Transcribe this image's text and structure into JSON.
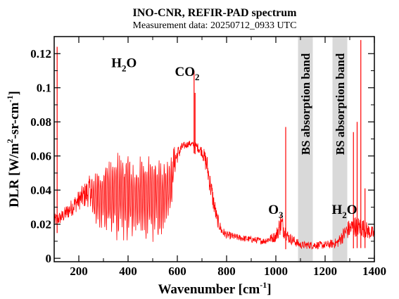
{
  "chart_data": {
    "type": "line",
    "title": "INO-CNR, REFIR-PAD spectrum",
    "subtitle": "Measurement data: 20250712_0933 UTC",
    "xlabel": {
      "base": "Wavenumber [cm",
      "sup": "-1",
      "tail": "]"
    },
    "ylabel": {
      "p1": "DLR [W/m",
      "sup1": "2",
      "p2": "-sr-cm",
      "sup2": "-1",
      "p3": "]"
    },
    "xlim": [
      100,
      1400
    ],
    "ylim": [
      -0.002,
      0.13
    ],
    "x_ticks": [
      200,
      400,
      600,
      800,
      1000,
      1200,
      1400
    ],
    "x_tick_labels": [
      "200",
      "400",
      "600",
      "800",
      "1000",
      "1200",
      "1400"
    ],
    "y_ticks": [
      0,
      0.02,
      0.04,
      0.06,
      0.08,
      0.1,
      0.12
    ],
    "y_tick_labels": [
      "0",
      "0.02",
      "0.04",
      "0.06",
      "0.08",
      "0.1",
      "0.12"
    ],
    "grid": false,
    "series_color": "#ff0000",
    "band_color": "#d9d9d9",
    "bands": [
      {
        "x0": 1090,
        "x1": 1150,
        "label": "BS absorption band"
      },
      {
        "x0": 1230,
        "x1": 1290,
        "label": "BS absorption band"
      }
    ],
    "annotations": [
      {
        "id": "h2o-left",
        "base": "H",
        "sub": "2",
        "tail": "O",
        "x": 435,
        "y": 0.112
      },
      {
        "id": "co2",
        "base": "CO",
        "sub": "2",
        "tail": "",
        "x": 690,
        "y": 0.107
      },
      {
        "id": "o3",
        "base": "O",
        "sub": "3",
        "tail": "",
        "x": 1030,
        "y": 0.026
      },
      {
        "id": "h2o-right",
        "base": "H",
        "sub": "2",
        "tail": "O",
        "x": 1330,
        "y": 0.026
      }
    ],
    "envelope": {
      "x": [
        100,
        130,
        160,
        200,
        250,
        300,
        350,
        400,
        450,
        500,
        550,
        580,
        600,
        620,
        650,
        680,
        700,
        720,
        740,
        760,
        780,
        800,
        850,
        900,
        950,
        1000,
        1020,
        1050,
        1100,
        1150,
        1200,
        1250,
        1290,
        1320,
        1350,
        1380,
        1400
      ],
      "high": [
        0.026,
        0.028,
        0.033,
        0.04,
        0.05,
        0.06,
        0.063,
        0.064,
        0.063,
        0.062,
        0.063,
        0.066,
        0.066,
        0.068,
        0.069,
        0.068,
        0.066,
        0.062,
        0.045,
        0.028,
        0.019,
        0.016,
        0.014,
        0.013,
        0.012,
        0.016,
        0.028,
        0.016,
        0.01,
        0.01,
        0.01,
        0.012,
        0.022,
        0.025,
        0.024,
        0.02,
        0.018
      ],
      "low": [
        0.014,
        0.016,
        0.018,
        0.022,
        0.02,
        0.014,
        0.01,
        0.008,
        0.008,
        0.009,
        0.014,
        0.028,
        0.05,
        0.06,
        0.064,
        0.06,
        0.056,
        0.04,
        0.024,
        0.014,
        0.01,
        0.009,
        0.008,
        0.007,
        0.006,
        0.006,
        0.006,
        0.005,
        0.003,
        0.003,
        0.003,
        0.003,
        0.005,
        0.006,
        0.006,
        0.006,
        0.006
      ]
    },
    "spikes": [
      {
        "x": 112,
        "y": 0.124
      },
      {
        "x": 668,
        "y": 0.11
      },
      {
        "x": 672,
        "y": 0.097
      },
      {
        "x": 1040,
        "y": 0.077
      },
      {
        "x": 1315,
        "y": 0.074
      },
      {
        "x": 1330,
        "y": 0.08
      },
      {
        "x": 1345,
        "y": 0.128
      },
      {
        "x": 1362,
        "y": 0.041
      }
    ]
  }
}
